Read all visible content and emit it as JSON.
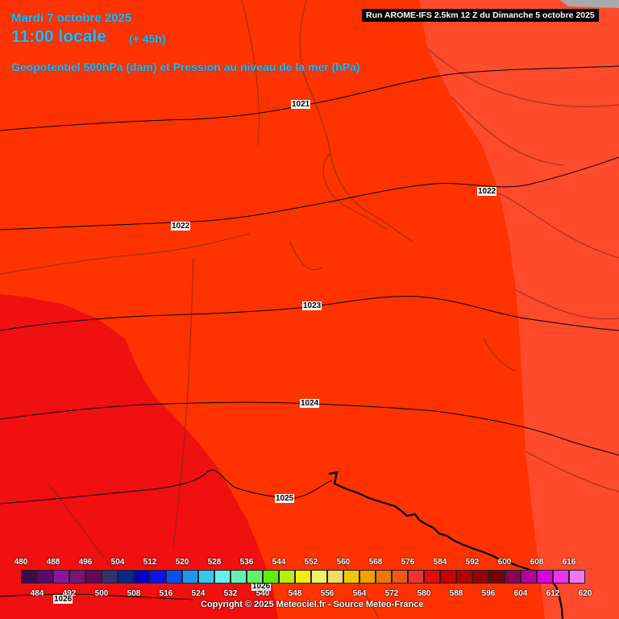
{
  "header": {
    "date": "Mardi 7 octobre 2025",
    "time": "11:00 locale",
    "lead": "(+ 45h)",
    "subtitle": "Geopotentiel 500hPa (dam) et Pression au niveau de la mer (hPa)",
    "run": "Run AROME-IFS 2.5km 12 Z du Dimanche 5 octobre 2025"
  },
  "footer": {
    "copyright": "Copyright © 2025 Meteociel.fr - Source Meteo-France"
  },
  "isobars": [
    {
      "label": "1021",
      "name": "isobar-1021"
    },
    {
      "label": "1022",
      "name": "isobar-1022-east"
    },
    {
      "label": "1022",
      "name": "isobar-1022-west"
    },
    {
      "label": "1023",
      "name": "isobar-1023"
    },
    {
      "label": "1024",
      "name": "isobar-1024"
    },
    {
      "label": "1025",
      "name": "isobar-1025"
    },
    {
      "label": "1026",
      "name": "isobar-1026-a"
    },
    {
      "label": "1026",
      "name": "isobar-1026-b"
    }
  ],
  "legend": {
    "top_labels": [
      "480",
      "488",
      "496",
      "504",
      "512",
      "520",
      "528",
      "536",
      "544",
      "552",
      "560",
      "568",
      "576",
      "584",
      "592",
      "600",
      "608",
      "616"
    ],
    "bottom_labels": [
      "484",
      "492",
      "500",
      "508",
      "516",
      "524",
      "532",
      "540",
      "548",
      "556",
      "564",
      "572",
      "580",
      "588",
      "596",
      "604",
      "612",
      "620"
    ],
    "colors": [
      "#3c0a50",
      "#5a0a6e",
      "#8c14a0",
      "#781478",
      "#640a5a",
      "#32326e",
      "#0a288c",
      "#0000c8",
      "#0a14f0",
      "#0a50f0",
      "#1e96f0",
      "#32c8f0",
      "#64f0f0",
      "#64f0b4",
      "#64f064",
      "#5af00a",
      "#b4f00a",
      "#f0f00a",
      "#f0f064",
      "#f0dc64",
      "#f0c800",
      "#f0a000",
      "#f07800",
      "#f05a14",
      "#f03232",
      "#e60a0a",
      "#c80000",
      "#b40000",
      "#960000",
      "#780000",
      "#8c0050",
      "#b400a0",
      "#dc00dc",
      "#f032f0",
      "#f078f0"
    ]
  },
  "map": {
    "zone_colors": {
      "west": "#f01010",
      "central": "#ff3300",
      "east": "#ff4a2c",
      "corner": "#aaaaaa"
    }
  }
}
